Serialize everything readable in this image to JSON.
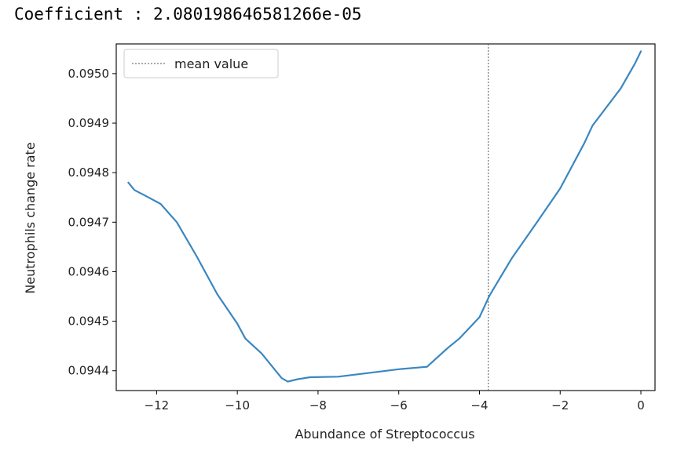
{
  "header": {
    "coefficient_text": "Coefficient : 2.080198646581266e-05"
  },
  "chart_data": {
    "type": "line",
    "xlabel": "Abundance of Streptococcus",
    "ylabel": "Neutrophils change rate",
    "xlim": [
      -13.0,
      0.35
    ],
    "ylim": [
      0.09436,
      0.09506
    ],
    "xticks": [
      -12,
      -10,
      -8,
      -6,
      -4,
      -2,
      0
    ],
    "xtick_labels": [
      "−12",
      "−10",
      "−8",
      "−6",
      "−4",
      "−2",
      "0"
    ],
    "yticks": [
      0.0944,
      0.0945,
      0.0946,
      0.0947,
      0.0948,
      0.0949,
      0.095
    ],
    "ytick_labels": [
      "0.0944",
      "0.0945",
      "0.0946",
      "0.0947",
      "0.0948",
      "0.0949",
      "0.0950"
    ],
    "grid": false,
    "legend_position": "top-left",
    "series": [
      {
        "name": "",
        "color": "#3a87c0",
        "x": [
          -12.7,
          -12.55,
          -12.2,
          -11.9,
          -11.5,
          -11.0,
          -10.5,
          -10.0,
          -9.8,
          -9.4,
          -9.1,
          -8.9,
          -8.75,
          -8.5,
          -8.2,
          -7.5,
          -7.0,
          -6.0,
          -5.3,
          -4.8,
          -4.5,
          -4.0,
          -3.75,
          -3.2,
          -2.6,
          -2.0,
          -1.4,
          -1.2,
          -0.5,
          -0.15,
          0.0
        ],
        "y": [
          0.09478,
          0.094765,
          0.09475,
          0.094737,
          0.0947,
          0.09463,
          0.094555,
          0.094495,
          0.094465,
          0.094435,
          0.094405,
          0.094385,
          0.094378,
          0.094383,
          0.094387,
          0.094388,
          0.094393,
          0.094403,
          0.094408,
          0.094445,
          0.094465,
          0.094508,
          0.094552,
          0.094627,
          0.094697,
          0.094768,
          0.09486,
          0.094895,
          0.09497,
          0.09502,
          0.095045
        ]
      }
    ],
    "reference_line": {
      "x": -3.78,
      "label": "mean value",
      "color": "#555555",
      "style": "dotted"
    }
  }
}
